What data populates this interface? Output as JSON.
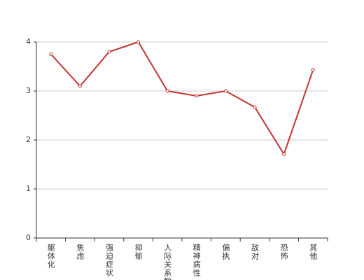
{
  "chart_data": {
    "type": "line",
    "categories": [
      "躯体化",
      "焦虑",
      "强迫症状",
      "抑郁",
      "人际关系敏感",
      "精神病性",
      "偏执",
      "敌对",
      "恐怖",
      "其他"
    ],
    "series": [
      {
        "color": "#c23531",
        "values": [
          3.75,
          3.1,
          3.8,
          4.0,
          3.0,
          2.9,
          3.0,
          2.67,
          1.71,
          3.43
        ]
      }
    ],
    "ylim": [
      0,
      4
    ],
    "yticks": [
      0,
      1,
      2,
      3,
      4
    ],
    "grid": true
  }
}
